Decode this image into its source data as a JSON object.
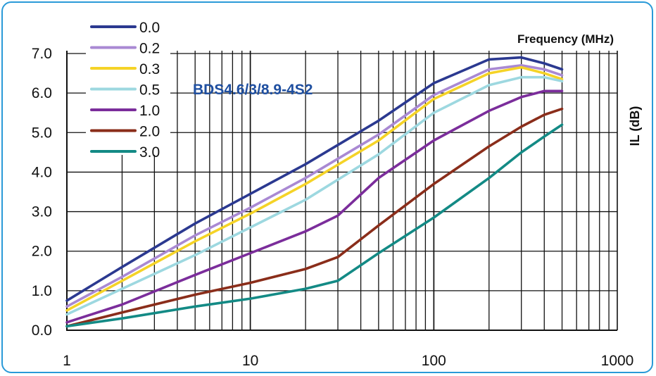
{
  "chart_data": {
    "type": "line",
    "title": "BDS4.6/3/8.9-4S2",
    "xlabel": "Frequency (MHz)",
    "ylabel": "IL (dB)",
    "xscale": "log",
    "xlim": [
      1,
      1000
    ],
    "ylim": [
      0,
      7
    ],
    "xticks": [
      "1",
      "10",
      "100",
      "1000"
    ],
    "yticks": [
      "0.0",
      "1.0",
      "2.0",
      "3.0",
      "4.0",
      "5.0",
      "6.0",
      "7.0"
    ],
    "grid": true,
    "legend_position": "top-left",
    "series": [
      {
        "name": "0.0",
        "color": "#2b3990",
        "x": [
          1,
          2,
          5,
          10,
          20,
          50,
          100,
          200,
          300,
          400,
          500
        ],
        "y": [
          0.75,
          1.6,
          2.7,
          3.45,
          4.2,
          5.3,
          6.25,
          6.85,
          6.9,
          6.75,
          6.6
        ]
      },
      {
        "name": "0.2",
        "color": "#a989d3",
        "x": [
          1,
          2,
          5,
          10,
          20,
          50,
          100,
          200,
          300,
          400,
          500
        ],
        "y": [
          0.6,
          1.35,
          2.4,
          3.1,
          3.85,
          4.95,
          5.95,
          6.6,
          6.7,
          6.6,
          6.45
        ]
      },
      {
        "name": "0.3",
        "color": "#f5d327",
        "x": [
          1,
          2,
          5,
          10,
          20,
          50,
          100,
          200,
          300,
          400,
          500
        ],
        "y": [
          0.5,
          1.25,
          2.25,
          2.95,
          3.7,
          4.8,
          5.85,
          6.5,
          6.65,
          6.5,
          6.35
        ]
      },
      {
        "name": "0.5",
        "color": "#9dd8e0",
        "x": [
          1,
          2,
          5,
          10,
          20,
          50,
          100,
          200,
          300,
          400,
          500
        ],
        "y": [
          0.4,
          1.05,
          1.9,
          2.6,
          3.3,
          4.45,
          5.5,
          6.2,
          6.4,
          6.4,
          6.3
        ]
      },
      {
        "name": "1.0",
        "color": "#7b2d9b",
        "x": [
          1,
          2,
          5,
          10,
          20,
          30,
          50,
          100,
          200,
          300,
          400,
          500
        ],
        "y": [
          0.2,
          0.65,
          1.4,
          1.95,
          2.5,
          2.9,
          3.85,
          4.8,
          5.55,
          5.9,
          6.05,
          6.05
        ]
      },
      {
        "name": "2.0",
        "color": "#8a2d1a",
        "x": [
          1,
          2,
          5,
          10,
          20,
          30,
          50,
          100,
          200,
          300,
          400,
          500
        ],
        "y": [
          0.1,
          0.45,
          0.9,
          1.2,
          1.55,
          1.85,
          2.65,
          3.7,
          4.65,
          5.15,
          5.45,
          5.6
        ]
      },
      {
        "name": "3.0",
        "color": "#138a85",
        "x": [
          1,
          2,
          5,
          10,
          20,
          30,
          50,
          100,
          200,
          300,
          400,
          500
        ],
        "y": [
          0.1,
          0.3,
          0.6,
          0.8,
          1.05,
          1.25,
          1.95,
          2.85,
          3.85,
          4.5,
          4.9,
          5.2
        ]
      }
    ]
  }
}
